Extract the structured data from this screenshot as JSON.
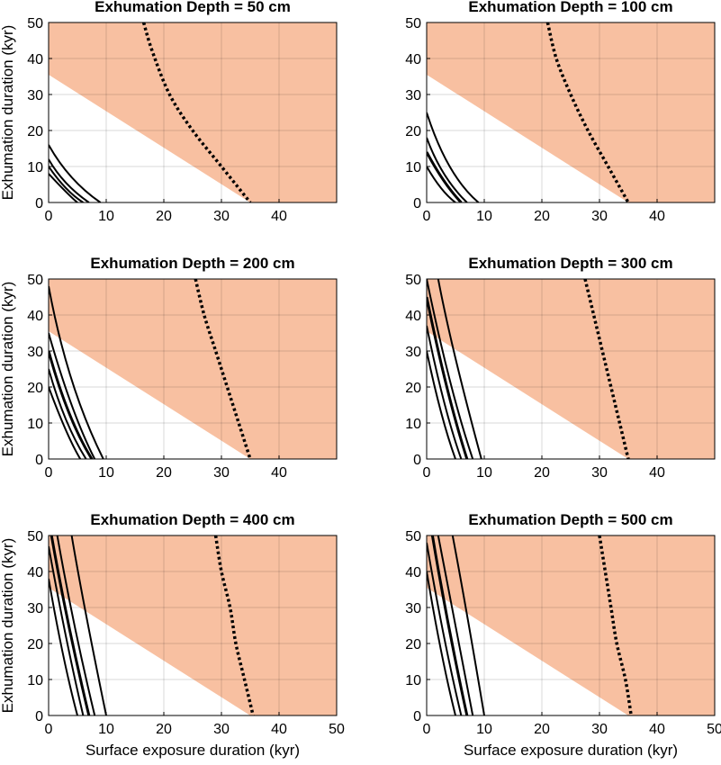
{
  "chart_data": [
    {
      "type": "line",
      "title": "Exhumation Depth =  50 cm",
      "xlabel": "",
      "ylabel": "Exhumation duration (kyr)",
      "xlim": [
        0,
        50
      ],
      "ylim": [
        0,
        50
      ],
      "xticks": [
        "0",
        "10",
        "20",
        "30",
        "40"
      ],
      "yticks": [
        "0",
        "10",
        "20",
        "30",
        "40",
        "50"
      ],
      "grid": true,
      "shaded_region": {
        "color": "#f8c0a1",
        "boundary": [
          [
            0,
            35.5
          ],
          [
            35,
            0
          ]
        ]
      },
      "solid_lines": [
        {
          "width": 2,
          "points": [
            [
              0,
              16
            ],
            [
              4,
              7
            ],
            [
              9,
              0
            ]
          ]
        },
        {
          "width": 2,
          "points": [
            [
              0,
              12
            ],
            [
              3,
              5.5
            ],
            [
              7,
              0
            ]
          ]
        },
        {
          "width": 2,
          "points": [
            [
              0,
              10
            ],
            [
              3,
              4
            ],
            [
              6,
              0
            ]
          ]
        },
        {
          "width": 2,
          "points": [
            [
              0,
              8
            ],
            [
              3,
              3
            ],
            [
              5,
              0
            ]
          ]
        }
      ],
      "dotted_line": {
        "points": [
          [
            16.5,
            50
          ],
          [
            18,
            42
          ],
          [
            21,
            30
          ],
          [
            25,
            20
          ],
          [
            30,
            10
          ],
          [
            35,
            0
          ]
        ]
      }
    },
    {
      "type": "line",
      "title": "Exhumation Depth = 100 cm",
      "xlabel": "",
      "ylabel": "",
      "xlim": [
        0,
        50
      ],
      "ylim": [
        0,
        50
      ],
      "xticks": [
        "0",
        "10",
        "20",
        "30",
        "40"
      ],
      "yticks": [
        "0",
        "10",
        "20",
        "30",
        "40",
        "50"
      ],
      "grid": true,
      "shaded_region": {
        "color": "#f8c0a1",
        "boundary": [
          [
            0,
            35.5
          ],
          [
            35,
            0
          ]
        ]
      },
      "solid_lines": [
        {
          "width": 2,
          "points": [
            [
              0,
              25
            ],
            [
              4,
              10
            ],
            [
              9,
              0
            ]
          ]
        },
        {
          "width": 2,
          "points": [
            [
              0,
              18
            ],
            [
              3,
              8
            ],
            [
              7,
              0
            ]
          ]
        },
        {
          "width": 3,
          "points": [
            [
              0,
              14
            ],
            [
              3,
              6
            ],
            [
              6,
              0
            ]
          ]
        },
        {
          "width": 2,
          "points": [
            [
              0,
              10
            ],
            [
              2.5,
              4
            ],
            [
              5,
              0
            ]
          ]
        }
      ],
      "dotted_line": {
        "points": [
          [
            21,
            50
          ],
          [
            22.5,
            40
          ],
          [
            25,
            30
          ],
          [
            28,
            20
          ],
          [
            31.5,
            10
          ],
          [
            35,
            0
          ]
        ]
      }
    },
    {
      "type": "line",
      "title": "Exhumation Depth = 200 cm",
      "xlabel": "",
      "ylabel": "Exhumation duration (kyr)",
      "xlim": [
        0,
        50
      ],
      "ylim": [
        0,
        50
      ],
      "xticks": [
        "0",
        "10",
        "20",
        "30",
        "40"
      ],
      "yticks": [
        "0",
        "10",
        "20",
        "30",
        "40",
        "50"
      ],
      "grid": true,
      "shaded_region": {
        "color": "#f8c0a1",
        "boundary": [
          [
            0,
            35.5
          ],
          [
            35,
            0
          ]
        ]
      },
      "solid_lines": [
        {
          "width": 2,
          "points": [
            [
              0,
              48
            ],
            [
              4,
              22
            ],
            [
              9.5,
              0
            ]
          ]
        },
        {
          "width": 2,
          "points": [
            [
              0,
              35
            ],
            [
              4,
              15
            ],
            [
              8,
              0
            ]
          ]
        },
        {
          "width": 3,
          "points": [
            [
              0,
              30
            ],
            [
              3.5,
              13
            ],
            [
              7.5,
              0
            ]
          ]
        },
        {
          "width": 2,
          "points": [
            [
              0,
              25
            ],
            [
              3,
              11
            ],
            [
              6.5,
              0
            ]
          ]
        },
        {
          "width": 2,
          "points": [
            [
              0,
              20
            ],
            [
              3,
              8
            ],
            [
              5.5,
              0
            ]
          ]
        }
      ],
      "dotted_line": {
        "points": [
          [
            25.5,
            50
          ],
          [
            27,
            40
          ],
          [
            29,
            30
          ],
          [
            31,
            20
          ],
          [
            33,
            10
          ],
          [
            35,
            0
          ]
        ]
      }
    },
    {
      "type": "line",
      "title": "Exhumation Depth = 300 cm",
      "xlabel": "",
      "ylabel": "",
      "xlim": [
        0,
        50
      ],
      "ylim": [
        0,
        50
      ],
      "xticks": [
        "0",
        "10",
        "20",
        "30",
        "40"
      ],
      "yticks": [
        "0",
        "10",
        "20",
        "30",
        "40",
        "50"
      ],
      "grid": true,
      "shaded_region": {
        "color": "#f8c0a1",
        "boundary": [
          [
            0,
            35.5
          ],
          [
            35,
            0
          ]
        ]
      },
      "solid_lines": [
        {
          "width": 2,
          "points": [
            [
              2,
              50
            ],
            [
              5,
              28
            ],
            [
              9.5,
              0
            ]
          ]
        },
        {
          "width": 2,
          "points": [
            [
              0,
              50
            ],
            [
              4,
              22
            ],
            [
              8,
              0
            ]
          ]
        },
        {
          "width": 3,
          "points": [
            [
              0,
              45
            ],
            [
              3.5,
              20
            ],
            [
              7,
              0
            ]
          ]
        },
        {
          "width": 2,
          "points": [
            [
              0,
              37
            ],
            [
              3,
              16
            ],
            [
              6,
              0
            ]
          ]
        },
        {
          "width": 2,
          "points": [
            [
              0,
              30
            ],
            [
              2.5,
              13
            ],
            [
              5,
              0
            ]
          ]
        }
      ],
      "dotted_line": {
        "points": [
          [
            27.5,
            50
          ],
          [
            29,
            40
          ],
          [
            30.5,
            30
          ],
          [
            32,
            20
          ],
          [
            33.5,
            10
          ],
          [
            35,
            0
          ]
        ]
      }
    },
    {
      "type": "line",
      "title": "Exhumation Depth = 400 cm",
      "xlabel": "Surface exposure duration (kyr)",
      "ylabel": "Exhumation duration (kyr)",
      "xlim": [
        0,
        50
      ],
      "ylim": [
        0,
        50
      ],
      "xticks": [
        "0",
        "10",
        "20",
        "30",
        "40",
        "50"
      ],
      "yticks": [
        "0",
        "10",
        "20",
        "30",
        "40",
        "50"
      ],
      "grid": true,
      "shaded_region": {
        "color": "#f8c0a1",
        "boundary": [
          [
            0,
            35.5
          ],
          [
            35,
            0
          ]
        ]
      },
      "solid_lines": [
        {
          "width": 2,
          "points": [
            [
              4,
              50
            ],
            [
              6.5,
              28
            ],
            [
              10,
              0
            ]
          ]
        },
        {
          "width": 2,
          "points": [
            [
              1.5,
              50
            ],
            [
              4.5,
              25
            ],
            [
              8,
              0
            ]
          ]
        },
        {
          "width": 3,
          "points": [
            [
              0.5,
              50
            ],
            [
              3.5,
              25
            ],
            [
              7,
              0
            ]
          ]
        },
        {
          "width": 2,
          "points": [
            [
              0,
              47
            ],
            [
              3,
              22
            ],
            [
              6,
              0
            ]
          ]
        },
        {
          "width": 2,
          "points": [
            [
              0,
              38
            ],
            [
              2.5,
              17
            ],
            [
              5,
              0
            ]
          ]
        }
      ],
      "dotted_line": {
        "points": [
          [
            29,
            50
          ],
          [
            30,
            40
          ],
          [
            31.5,
            30
          ],
          [
            32.5,
            20
          ],
          [
            34,
            10
          ],
          [
            35.5,
            0
          ]
        ]
      }
    },
    {
      "type": "line",
      "title": "Exhumation Depth = 500 cm",
      "xlabel": "Surface exposure duration (kyr)",
      "ylabel": "",
      "xlim": [
        0,
        50
      ],
      "ylim": [
        0,
        50
      ],
      "xticks": [
        "0",
        "10",
        "20",
        "30",
        "40",
        "50"
      ],
      "yticks": [
        "0",
        "10",
        "20",
        "30",
        "40",
        "50"
      ],
      "grid": true,
      "shaded_region": {
        "color": "#f8c0a1",
        "boundary": [
          [
            0,
            35.5
          ],
          [
            35,
            0
          ]
        ]
      },
      "solid_lines": [
        {
          "width": 2,
          "points": [
            [
              4.5,
              50
            ],
            [
              7,
              28
            ],
            [
              10,
              0
            ]
          ]
        },
        {
          "width": 2,
          "points": [
            [
              2,
              50
            ],
            [
              5,
              25
            ],
            [
              8,
              0
            ]
          ]
        },
        {
          "width": 3,
          "points": [
            [
              1,
              50
            ],
            [
              3.8,
              25
            ],
            [
              7,
              0
            ]
          ]
        },
        {
          "width": 2,
          "points": [
            [
              0,
              48
            ],
            [
              3,
              22
            ],
            [
              6,
              0
            ]
          ]
        },
        {
          "width": 2,
          "points": [
            [
              0,
              40
            ],
            [
              2.5,
              18
            ],
            [
              5,
              0
            ]
          ]
        }
      ],
      "dotted_line": {
        "points": [
          [
            30,
            50
          ],
          [
            31,
            40
          ],
          [
            32,
            30
          ],
          [
            33,
            20
          ],
          [
            34.5,
            10
          ],
          [
            35.5,
            0
          ]
        ]
      }
    }
  ]
}
